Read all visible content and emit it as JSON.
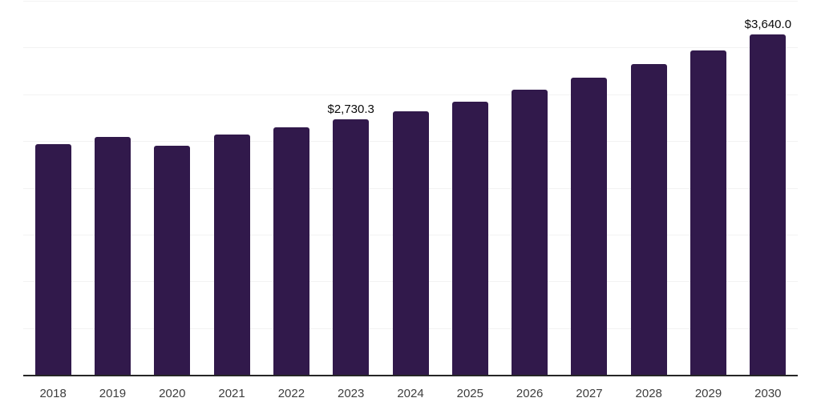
{
  "chart_data": {
    "type": "bar",
    "categories": [
      "2018",
      "2019",
      "2020",
      "2021",
      "2022",
      "2023",
      "2024",
      "2025",
      "2026",
      "2027",
      "2028",
      "2029",
      "2030"
    ],
    "values": [
      2465,
      2545,
      2450,
      2570,
      2645,
      2730.3,
      2820,
      2925,
      3050,
      3180,
      3320,
      3470,
      3640
    ],
    "data_labels": [
      {
        "index": 5,
        "text": "$2,730.3"
      },
      {
        "index": 12,
        "text": "$3,640.0"
      }
    ],
    "title": "",
    "xlabel": "",
    "ylabel": "",
    "ylim": [
      0,
      4000
    ],
    "gridline_step": 500,
    "grid": true,
    "legend": false,
    "y_axis_ticks_visible": false,
    "bar_color": "#31194b",
    "axis_color": "#262626",
    "gridline_color": "#f2f2f2",
    "tick_label_color": "#3d3d3d",
    "data_label_color": "#0a0a0a",
    "background_color": "#ffffff"
  }
}
